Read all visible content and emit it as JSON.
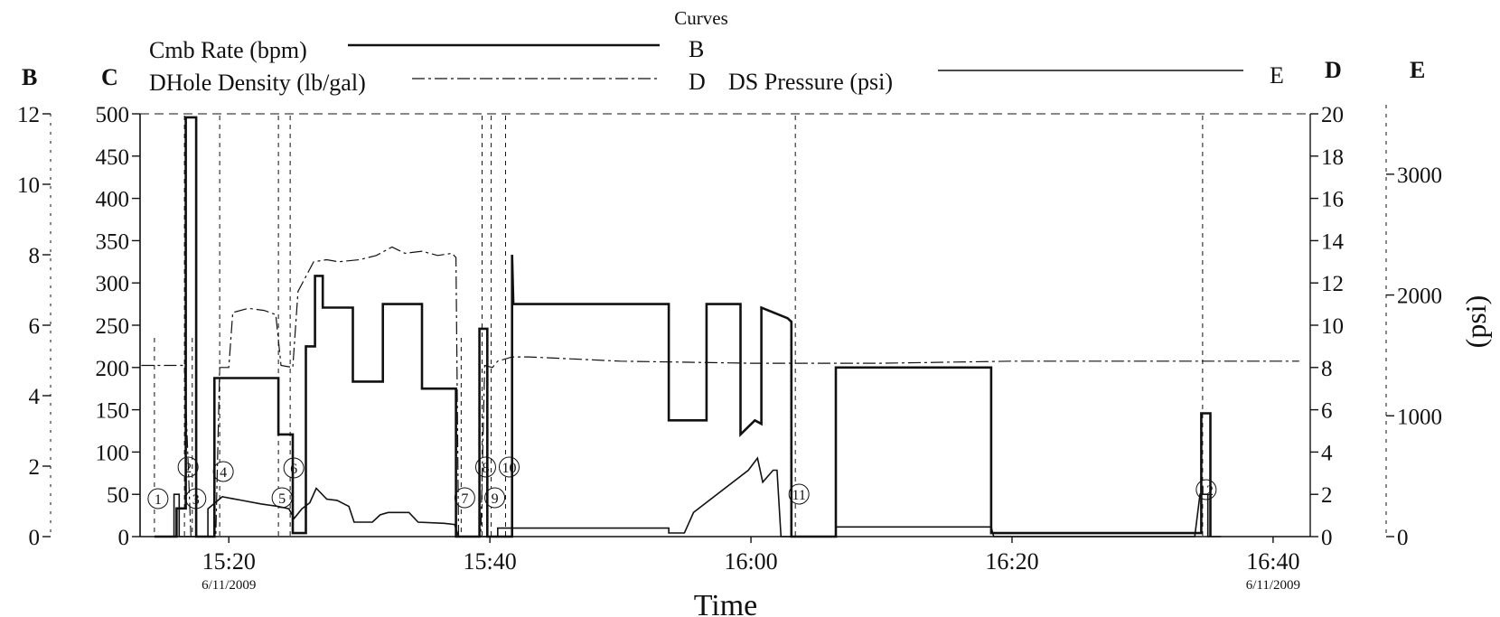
{
  "chart_data": {
    "type": "line",
    "title": "Curves",
    "xlabel": "Time",
    "x_ticks": [
      "15:20",
      "15:40",
      "16:00",
      "16:20",
      "16:40"
    ],
    "x_tick_values": [
      20,
      40,
      60,
      80,
      100
    ],
    "x_range": [
      13.2,
      102.5
    ],
    "date_labels": [
      {
        "label": "6/11/2009",
        "x": 20
      },
      {
        "label": "6/11/2009",
        "x": 100
      }
    ],
    "axes": {
      "B": {
        "name": "B",
        "range": [
          0,
          12
        ],
        "ticks": [
          0,
          2,
          4,
          6,
          8,
          10,
          12
        ],
        "side": "left"
      },
      "C": {
        "name": "C",
        "range": [
          0,
          500
        ],
        "ticks": [
          0,
          50,
          100,
          150,
          200,
          250,
          300,
          350,
          400,
          450,
          500
        ],
        "side": "left"
      },
      "D": {
        "name": "D",
        "range": [
          0,
          20
        ],
        "ticks": [
          0,
          2,
          4,
          6,
          8,
          10,
          12,
          14,
          16,
          18,
          20
        ],
        "side": "right"
      },
      "E": {
        "name": "E",
        "range": [
          0,
          3500
        ],
        "ticks": [
          0,
          1000,
          2000,
          3000
        ],
        "side": "right",
        "unit_label": "(psi)"
      }
    },
    "legend": [
      {
        "name": "Cmb Rate (bpm)",
        "axis": "B",
        "style": "solid"
      },
      {
        "name": "DHole Density (lb/gal)",
        "axis": "D",
        "style": "dash-dot"
      },
      {
        "name": "DS Pressure (psi)",
        "axis": "E",
        "style": "solid"
      }
    ],
    "series": [
      {
        "name": "Cmb Rate (bpm)",
        "axis": "B",
        "style": "solid",
        "width": 2.6,
        "points": [
          [
            14.3,
            0
          ],
          [
            16.0,
            0
          ],
          [
            16.0,
            0.8
          ],
          [
            16.7,
            0.8
          ],
          [
            16.7,
            11.9
          ],
          [
            17.5,
            11.9
          ],
          [
            17.5,
            0
          ],
          [
            18.9,
            0
          ],
          [
            18.9,
            4.5
          ],
          [
            23.8,
            4.5
          ],
          [
            23.8,
            2.9
          ],
          [
            24.9,
            2.9
          ],
          [
            24.9,
            0.1
          ],
          [
            25.9,
            0.1
          ],
          [
            25.9,
            5.4
          ],
          [
            26.6,
            5.4
          ],
          [
            26.6,
            7.4
          ],
          [
            27.2,
            7.4
          ],
          [
            27.2,
            6.5
          ],
          [
            29.5,
            6.5
          ],
          [
            29.5,
            4.4
          ],
          [
            31.8,
            4.4
          ],
          [
            31.8,
            6.6
          ],
          [
            34.8,
            6.6
          ],
          [
            34.8,
            4.2
          ],
          [
            37.4,
            4.2
          ],
          [
            37.4,
            0
          ],
          [
            39.2,
            0
          ],
          [
            39.2,
            5.9
          ],
          [
            39.8,
            5.9
          ],
          [
            39.8,
            0
          ],
          [
            41.7,
            0
          ],
          [
            41.7,
            8.0
          ],
          [
            41.8,
            6.6
          ],
          [
            53.7,
            6.6
          ],
          [
            53.7,
            3.3
          ],
          [
            56.6,
            3.3
          ],
          [
            56.6,
            6.6
          ],
          [
            59.2,
            6.6
          ],
          [
            59.2,
            2.9
          ],
          [
            60.3,
            3.3
          ],
          [
            60.8,
            3.2
          ],
          [
            60.8,
            6.5
          ],
          [
            62.8,
            6.2
          ],
          [
            63.1,
            6.1
          ],
          [
            63.1,
            0
          ],
          [
            66.5,
            0
          ],
          [
            66.5,
            4.8
          ],
          [
            78.4,
            4.8
          ],
          [
            78.4,
            0.1
          ],
          [
            94.5,
            0.1
          ],
          [
            94.5,
            3.5
          ],
          [
            95.2,
            3.5
          ],
          [
            95.2,
            0
          ]
        ]
      },
      {
        "name": "DS Pressure (psi)",
        "axis": "E",
        "style": "solid",
        "width": 1.6,
        "points": [
          [
            15.0,
            0
          ],
          [
            15.8,
            0
          ],
          [
            15.8,
            350
          ],
          [
            16.2,
            350
          ],
          [
            16.2,
            0
          ],
          [
            18.4,
            0
          ],
          [
            18.4,
            230
          ],
          [
            19.5,
            330
          ],
          [
            21.0,
            300
          ],
          [
            22.5,
            270
          ],
          [
            23.8,
            250
          ],
          [
            24.6,
            230
          ],
          [
            25.0,
            150
          ],
          [
            25.6,
            230
          ],
          [
            26.2,
            280
          ],
          [
            26.7,
            400
          ],
          [
            27.5,
            310
          ],
          [
            28.3,
            300
          ],
          [
            29.2,
            250
          ],
          [
            29.6,
            120
          ],
          [
            31.0,
            120
          ],
          [
            31.6,
            180
          ],
          [
            32.2,
            200
          ],
          [
            33.8,
            200
          ],
          [
            34.5,
            120
          ],
          [
            36.5,
            110
          ],
          [
            37.3,
            100
          ],
          [
            37.6,
            0
          ],
          [
            40.6,
            0
          ],
          [
            40.6,
            70
          ],
          [
            43.0,
            70
          ],
          [
            53.7,
            70
          ],
          [
            53.7,
            30
          ],
          [
            54.9,
            30
          ],
          [
            55.6,
            200
          ],
          [
            59.8,
            550
          ],
          [
            60.5,
            650
          ],
          [
            60.9,
            450
          ],
          [
            61.7,
            550
          ],
          [
            62.0,
            550
          ],
          [
            62.3,
            0
          ],
          [
            66.5,
            0
          ],
          [
            66.5,
            80
          ],
          [
            78.4,
            80
          ],
          [
            78.6,
            0
          ],
          [
            94.0,
            0
          ],
          [
            94.4,
            350
          ],
          [
            95.0,
            350
          ],
          [
            95.0,
            0
          ],
          [
            96.0,
            0
          ]
        ]
      },
      {
        "name": "DHole Density (lb/gal)",
        "axis": "D",
        "style": "dash-dot",
        "width": 1.2,
        "points": [
          [
            13.3,
            8.1
          ],
          [
            16.6,
            8.1
          ],
          [
            17.1,
            0
          ],
          [
            19.0,
            0
          ],
          [
            19.3,
            8.0
          ],
          [
            20.0,
            8.0
          ],
          [
            20.3,
            10.6
          ],
          [
            21.5,
            10.8
          ],
          [
            22.7,
            10.7
          ],
          [
            23.6,
            10.5
          ],
          [
            24.0,
            8.1
          ],
          [
            24.9,
            8.0
          ],
          [
            25.3,
            11.6
          ],
          [
            26.5,
            13.0
          ],
          [
            27.5,
            13.1
          ],
          [
            28.4,
            13.0
          ],
          [
            30.0,
            13.1
          ],
          [
            31.3,
            13.3
          ],
          [
            32.5,
            13.7
          ],
          [
            33.5,
            13.4
          ],
          [
            34.8,
            13.5
          ],
          [
            36.0,
            13.3
          ],
          [
            37.1,
            13.4
          ],
          [
            37.4,
            13.2
          ],
          [
            37.6,
            0
          ],
          [
            39.3,
            0
          ],
          [
            39.6,
            8.1
          ],
          [
            40.2,
            8.0
          ],
          [
            40.6,
            8.3
          ],
          [
            41.7,
            8.5
          ],
          [
            43.0,
            8.5
          ],
          [
            50.0,
            8.3
          ],
          [
            60.0,
            8.2
          ],
          [
            65.0,
            8.2
          ],
          [
            70.0,
            8.2
          ],
          [
            80.0,
            8.3
          ],
          [
            90.0,
            8.3
          ],
          [
            100.0,
            8.3
          ],
          [
            102.0,
            8.3
          ]
        ]
      }
    ],
    "event_markers": [
      {
        "label": "1",
        "x": 14.3
      },
      {
        "label": "2",
        "x": 16.6
      },
      {
        "label": "3",
        "x": 17.2
      },
      {
        "label": "4",
        "x": 19.3
      },
      {
        "label": "5",
        "x": 23.8
      },
      {
        "label": "6",
        "x": 24.7
      },
      {
        "label": "7",
        "x": 37.8
      },
      {
        "label": "8",
        "x": 39.4
      },
      {
        "label": "9",
        "x": 40.1
      },
      {
        "label": "10",
        "x": 41.2
      },
      {
        "label": "11",
        "x": 63.4
      },
      {
        "label": "12",
        "x": 94.6
      }
    ],
    "legend_tags": [
      {
        "name": "B",
        "series": "Cmb Rate (bpm)"
      },
      {
        "name": "D",
        "series": "DHole Density (lb/gal)"
      },
      {
        "name": "E",
        "series": "DS Pressure (psi)"
      }
    ],
    "colors": {
      "line": "#111111",
      "background": "#ffffff"
    },
    "grid": false,
    "legend_placement": "top"
  }
}
